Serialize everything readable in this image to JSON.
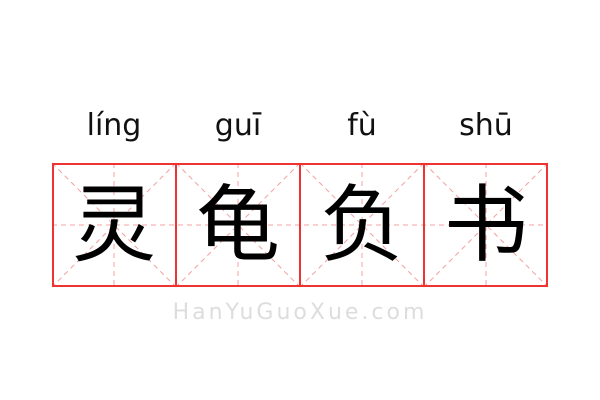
{
  "characters": [
    {
      "pinyin": "líng",
      "hanzi": "灵"
    },
    {
      "pinyin": "guī",
      "hanzi": "龟"
    },
    {
      "pinyin": "fù",
      "hanzi": "负"
    },
    {
      "pinyin": "shū",
      "hanzi": "书"
    }
  ],
  "watermark": "HanYuGuoXue.com",
  "colors": {
    "grid": "#ee3333",
    "guides": "#f4a0a0"
  }
}
